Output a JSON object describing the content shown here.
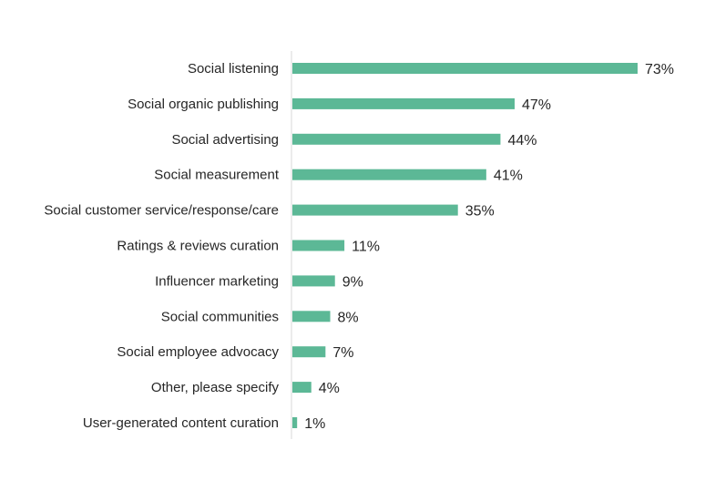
{
  "chart_data": {
    "type": "bar",
    "orientation": "horizontal",
    "categories": [
      "Social listening",
      "Social organic publishing",
      "Social advertising",
      "Social measurement",
      "Social customer service/response/care",
      "Ratings & reviews curation",
      "Influencer marketing",
      "Social communities",
      "Social employee advocacy",
      "Other, please specify",
      "User-generated content curation"
    ],
    "values": [
      73,
      47,
      44,
      41,
      35,
      11,
      9,
      8,
      7,
      4,
      1
    ],
    "value_labels": [
      "73%",
      "47%",
      "44%",
      "41%",
      "35%",
      "11%",
      "9%",
      "8%",
      "7%",
      "4%",
      "1%"
    ],
    "unit": "%",
    "xlim": [
      0,
      80
    ],
    "grid": false,
    "legend": "none",
    "colors": {
      "bar": "#5cb896",
      "axis": "#d9d9d9",
      "text": "#262626"
    }
  }
}
